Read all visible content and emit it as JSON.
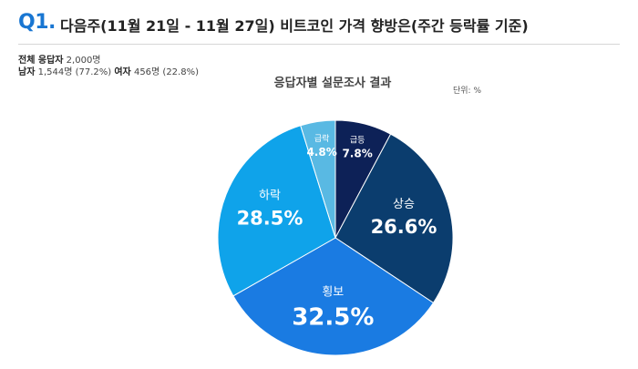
{
  "question": {
    "number": "Q1.",
    "title": "다음주(11월 21일 - 11월 27일)  비트코인 가격 향방은(주간 등락률 기준)"
  },
  "respondents": {
    "total_label": "전체 응답자",
    "total_value": "2,000명",
    "male_label": "남자",
    "male_value": "1,544명 (77.2%)",
    "female_label": "여자",
    "female_value": "456명 (22.8%)"
  },
  "chart_title": "응답자별 설문조사 결과",
  "unit_label": "단위: %",
  "chart_data": {
    "type": "pie",
    "title": "응답자별 설문조사 결과",
    "unit": "%",
    "slices": [
      {
        "label": "급등",
        "value": 7.8,
        "display": "7.8%",
        "color": "#0d2157"
      },
      {
        "label": "상승",
        "value": 26.6,
        "display": "26.6%",
        "color": "#0b3d6e"
      },
      {
        "label": "횡보",
        "value": 32.5,
        "display": "32.5%",
        "color": "#1a7be2"
      },
      {
        "label": "하락",
        "value": 28.5,
        "display": "28.5%",
        "color": "#0fa3ea"
      },
      {
        "label": "급락",
        "value": 4.8,
        "display": "4.8%",
        "color": "#59b9e3"
      }
    ]
  }
}
